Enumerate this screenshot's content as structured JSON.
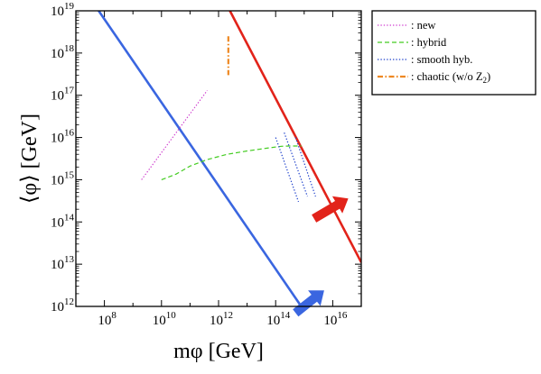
{
  "chart_data": {
    "type": "line",
    "xlabel": "mφ [GeV]",
    "ylabel": "⟨φ⟩ [GeV]",
    "x_scale": "log",
    "y_scale": "log",
    "xlim": [
      10000000.0,
      1e+17
    ],
    "ylim": [
      1000000000000.0,
      1e+19
    ],
    "x_ticks": [
      {
        "value": 100000000.0,
        "base": "10",
        "exp": "8"
      },
      {
        "value": 10000000000.0,
        "base": "10",
        "exp": "10"
      },
      {
        "value": 1000000000000.0,
        "base": "10",
        "exp": "12"
      },
      {
        "value": 100000000000000.0,
        "base": "10",
        "exp": "14"
      },
      {
        "value": 1e+16,
        "base": "10",
        "exp": "16"
      }
    ],
    "y_ticks": [
      {
        "value": 1000000000000.0,
        "base": "10",
        "exp": "12"
      },
      {
        "value": 10000000000000.0,
        "base": "10",
        "exp": "13"
      },
      {
        "value": 100000000000000.0,
        "base": "10",
        "exp": "14"
      },
      {
        "value": 1000000000000000.0,
        "base": "10",
        "exp": "15"
      },
      {
        "value": 1e+16,
        "base": "10",
        "exp": "16"
      },
      {
        "value": 1e+17,
        "base": "10",
        "exp": "17"
      },
      {
        "value": 1e+18,
        "base": "10",
        "exp": "18"
      },
      {
        "value": 1e+19,
        "base": "10",
        "exp": "19"
      }
    ],
    "series": [
      {
        "name": "",
        "color": "#3a66e0",
        "style": "solid",
        "x": [
          63000000.0,
          790000000000000.0
        ],
        "y": [
          1e+19,
          1000000000000.0
        ]
      },
      {
        "name": "",
        "color": "#e2231a",
        "style": "solid",
        "x": [
          2500000000000.0,
          1e+17
        ],
        "y": [
          1e+19,
          11000000000000.0
        ]
      },
      {
        "name": "new",
        "color": "#d040d0",
        "style": "dotted",
        "x": [
          2000000000.0,
          400000000000.0
        ],
        "y": [
          1000000000000000.0,
          1.3e+17
        ]
      },
      {
        "name": "hybrid",
        "color": "#44cc22",
        "style": "dashed",
        "x": [
          10000000000.0,
          32000000000.0,
          100000000000.0,
          400000000000.0,
          2000000000000.0,
          10000000000000.0,
          50000000000000.0,
          160000000000000.0,
          320000000000000.0,
          800000000000000.0
        ],
        "y": [
          1000000000000000.0,
          1350000000000000.0,
          2100000000000000.0,
          3000000000000000.0,
          4000000000000000.0,
          4800000000000000.0,
          5600000000000000.0,
          6200000000000000.0,
          6300000000000000.0,
          6300000000000000.0
        ]
      },
      {
        "name": "smooth hyb.",
        "color": "#2244cc",
        "style": "dotted",
        "segment": 1,
        "x": [
          100000000000000.0,
          630000000000000.0
        ],
        "y": [
          1e+16,
          300000000000000.0
        ]
      },
      {
        "name": "smooth hyb.",
        "color": "#2244cc",
        "style": "dotted",
        "segment": 2,
        "x": [
          200000000000000.0,
          1300000000000000.0
        ],
        "y": [
          1.3e+16,
          400000000000000.0
        ]
      },
      {
        "name": "smooth hyb.",
        "color": "#2244cc",
        "style": "dotted",
        "segment": 3,
        "x": [
          500000000000000.0,
          2500000000000000.0
        ],
        "y": [
          1e+16,
          400000000000000.0
        ]
      },
      {
        "name": "chaotic (w/o Z2)",
        "color": "#ee8822",
        "style": "dashdot",
        "x": [
          2200000000000.0,
          2200000000000.0
        ],
        "y": [
          2.5e+18,
          3e+17
        ]
      }
    ],
    "arrows": [
      {
        "color": "#3a66e0",
        "from": [
          500000000000000.0,
          700000000000.0
        ],
        "to": [
          5000000000000000.0,
          2400000000000.0
        ]
      },
      {
        "color": "#e2231a",
        "from": [
          2200000000000000.0,
          120000000000000.0
        ],
        "to": [
          3.5e+16,
          360000000000000.0
        ]
      }
    ],
    "legend": {
      "placement": "outside-right",
      "entries": [
        {
          "label": ": new",
          "color": "#d040d0",
          "style": "dotted"
        },
        {
          "label": ": hybrid",
          "color": "#44cc22",
          "style": "dashed"
        },
        {
          "label": ": smooth hyb.",
          "color": "#2244cc",
          "style": "dotted"
        },
        {
          "label": ": chaotic (w/o Z",
          "sub": "2",
          "tail": ")",
          "color": "#ee8822",
          "style": "dashdot"
        }
      ]
    }
  }
}
